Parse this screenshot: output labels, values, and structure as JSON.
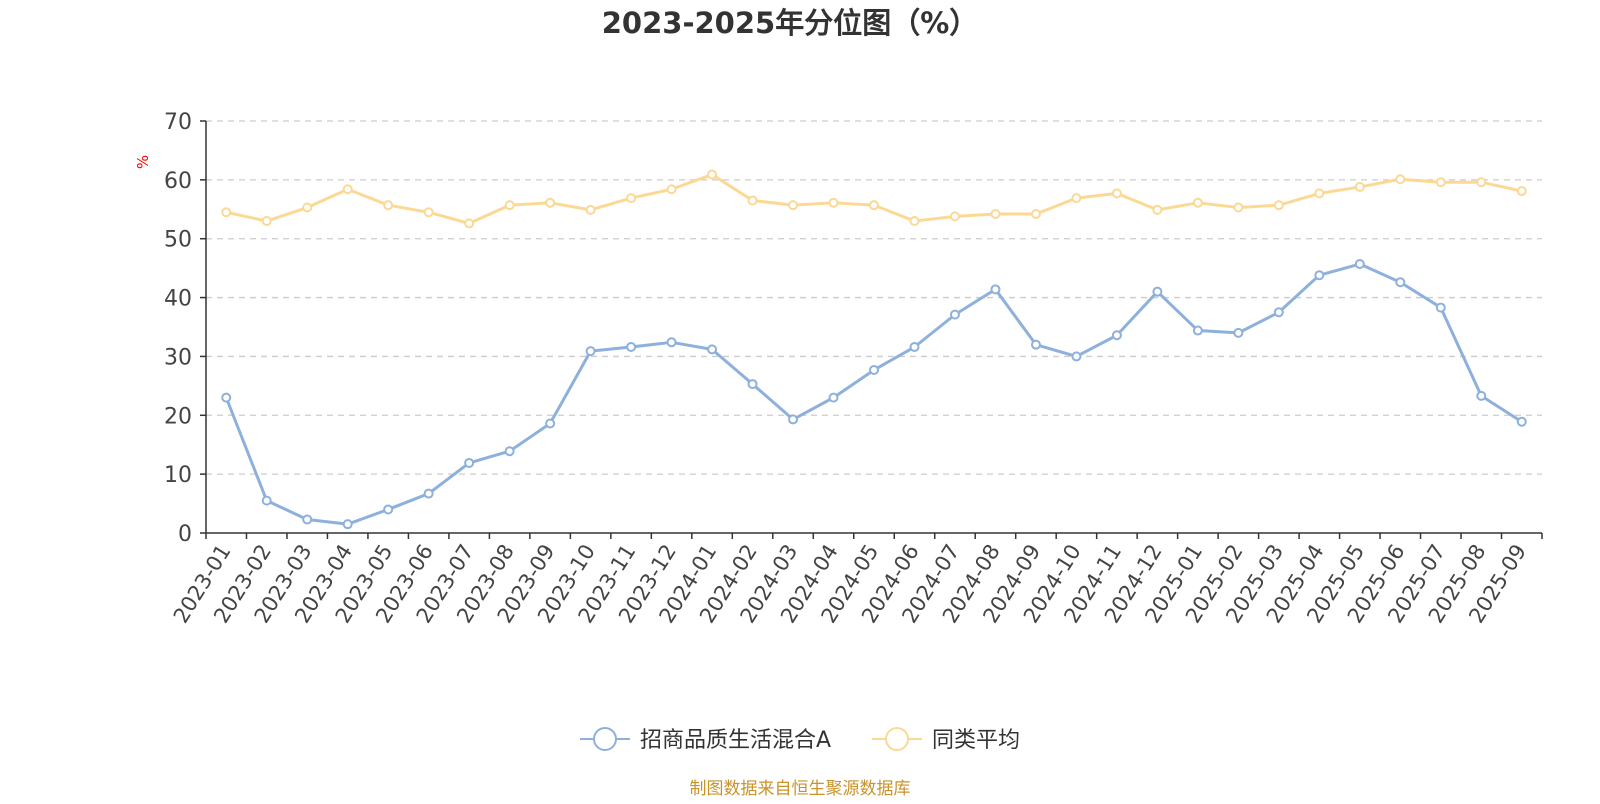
{
  "chart_data": {
    "type": "line",
    "title": "2023-2025年分位图（%）",
    "ylabel": "%",
    "xlabel": "",
    "ylim": [
      0,
      70
    ],
    "yticks": [
      0,
      10,
      20,
      30,
      40,
      50,
      60,
      70
    ],
    "grid": true,
    "legend_position": "bottom",
    "categories": [
      "2023-01",
      "2023-02",
      "2023-03",
      "2023-04",
      "2023-05",
      "2023-06",
      "2023-07",
      "2023-08",
      "2023-09",
      "2023-10",
      "2023-11",
      "2023-12",
      "2024-01",
      "2024-02",
      "2024-03",
      "2024-04",
      "2024-05",
      "2024-06",
      "2024-07",
      "2024-08",
      "2024-09",
      "2024-10",
      "2024-11",
      "2024-12",
      "2025-01",
      "2025-02",
      "2025-03",
      "2025-04",
      "2025-05",
      "2025-06",
      "2025-07",
      "2025-08",
      "2025-09"
    ],
    "series": [
      {
        "name": "招商品质生活混合A",
        "color": "#8eb0dc",
        "values": [
          23,
          5.5,
          2.3,
          1.5,
          4,
          6.7,
          11.9,
          13.9,
          18.6,
          30.9,
          31.6,
          32.4,
          31.2,
          25.3,
          19.3,
          23,
          27.7,
          31.6,
          37.1,
          41.4,
          32,
          30,
          33.6,
          41,
          34.4,
          34,
          37.5,
          43.8,
          45.7,
          42.6,
          38.3,
          23.3,
          18.9
        ]
      },
      {
        "name": "同类平均",
        "color": "#fbd995",
        "values": [
          54.5,
          53,
          55.3,
          58.4,
          55.7,
          54.5,
          52.6,
          55.7,
          56.1,
          54.9,
          56.9,
          58.4,
          60.9,
          56.5,
          55.7,
          56.1,
          55.7,
          53,
          53.8,
          54.2,
          54.2,
          56.9,
          57.7,
          54.9,
          56.1,
          55.3,
          55.7,
          57.7,
          58.8,
          60.1,
          59.6,
          59.6,
          58.1
        ]
      }
    ],
    "axis_color": "#333333",
    "grid_color": "#cccccc",
    "tick_label_color": "#444444",
    "ylabel_color": "#ff0000"
  },
  "footer": {
    "source_text": "制图数据来自恒生聚源数据库",
    "color": "#c9932a"
  }
}
